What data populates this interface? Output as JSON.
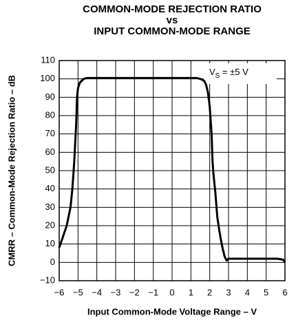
{
  "chart_data": {
    "type": "line",
    "title": [
      "COMMON-MODE REJECTION RATIO",
      "vs",
      "INPUT COMMON-MODE RANGE"
    ],
    "xlabel": "Input Common-Mode Voltage Range – V",
    "ylabel": "CMRR – Common-Mode Rejection Ratio – dB",
    "annotation": {
      "main": "V",
      "sub": "S",
      "rest": " = ±5 V"
    },
    "x": [
      -6,
      -5.8,
      -5.6,
      -5.4,
      -5.3,
      -5.2,
      -5.1,
      -5.05,
      -5,
      -4.9,
      -4.7,
      -4.5,
      1.3,
      1.5,
      1.7,
      1.8,
      1.9,
      2.0,
      2.1,
      2.15,
      2.2,
      2.3,
      2.4,
      2.5,
      2.6,
      2.7,
      2.8,
      2.9,
      3.0,
      4,
      5,
      5.6,
      5.9,
      6
    ],
    "series": [
      {
        "name": "CMRR",
        "color": "#000000",
        "values": [
          8,
          14,
          20,
          30,
          40,
          55,
          75,
          90,
          95,
          98,
          100,
          100.5,
          100.5,
          100,
          99,
          97,
          93,
          85,
          70,
          55,
          48,
          38,
          25,
          18,
          12,
          7,
          3,
          1,
          2,
          2,
          2,
          2,
          1.5,
          0
        ]
      }
    ],
    "xlim": [
      -6,
      6
    ],
    "xticks": [
      {
        "value": -6,
        "label": "−6"
      },
      {
        "value": -5,
        "label": "−5"
      },
      {
        "value": -4,
        "label": "−4"
      },
      {
        "value": -3,
        "label": "−3"
      },
      {
        "value": -2,
        "label": "−2"
      },
      {
        "value": -1,
        "label": "−1"
      },
      0,
      1,
      2,
      3,
      4,
      5,
      6
    ],
    "ylim": [
      -10,
      110
    ],
    "yticks": [
      {
        "value": -10,
        "label": "−10"
      },
      0,
      10,
      20,
      30,
      40,
      50,
      60,
      70,
      80,
      90,
      100,
      110
    ],
    "grid": true
  }
}
